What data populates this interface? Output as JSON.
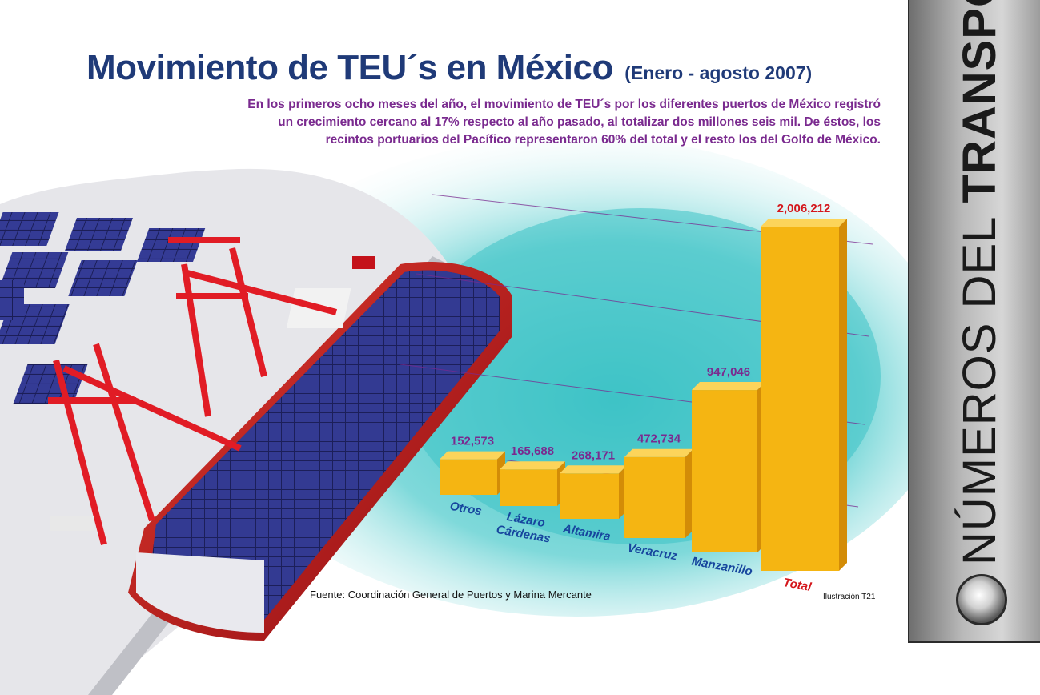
{
  "header": {
    "title": "Movimiento de TEU´s en México",
    "subtitle": "(Enero - agosto 2007)",
    "intro_lines": [
      "En los primeros ocho meses del año, el movimiento de TEU´s por los diferentes puertos de México registró",
      "un crecimiento cercano al 17% respecto al año pasado, al totalizar dos millones seis mil. De éstos, los",
      "recintos portuarios del Pacífico representaron 60% del total y el resto los del Golfo de México."
    ]
  },
  "chart_data": {
    "type": "bar",
    "categories": [
      "Otros",
      "Lázaro Cárdenas",
      "Altamira",
      "Veracruz",
      "Manzanillo",
      "Total"
    ],
    "category_lines": [
      [
        "Otros"
      ],
      [
        "Lázaro",
        "Cárdenas"
      ],
      [
        "Altamira"
      ],
      [
        "Veracruz"
      ],
      [
        "Manzanillo"
      ],
      [
        "Total"
      ]
    ],
    "values": [
      152573,
      165688,
      268171,
      472734,
      947046,
      2006212
    ],
    "value_labels": [
      "152,573",
      "165,688",
      "268,171",
      "472,734",
      "947,046",
      "2,006,212"
    ],
    "title": "Movimiento de TEU´s en México",
    "ylim": [
      0,
      2100000
    ],
    "grid": true,
    "colors": {
      "bar_front": "#f5b512",
      "bar_top": "#fcd45a",
      "bar_side": "#d38c07",
      "value_label": "#7a2a8f",
      "total_value_label": "#d4161b",
      "category_label": "#17469e",
      "total_category_label": "#d4161b",
      "gridline": "#7a2a8f"
    }
  },
  "footer": {
    "source": "Fuente: Coordinación General de Puertos y Marina Mercante",
    "credit": "Ilustración T21"
  },
  "sidebar": {
    "label_thin": "NÚMEROS DEL",
    "label_bold": "TRANSPORTE",
    "knob_icon": "round-button-icon"
  },
  "colors": {
    "title": "#1f3a78",
    "intro": "#7a2a8f",
    "water": "#3fc4c4",
    "ship_hull": "#c4121a",
    "crane": "#e11c25",
    "container_blue": "#2a2f7c"
  }
}
